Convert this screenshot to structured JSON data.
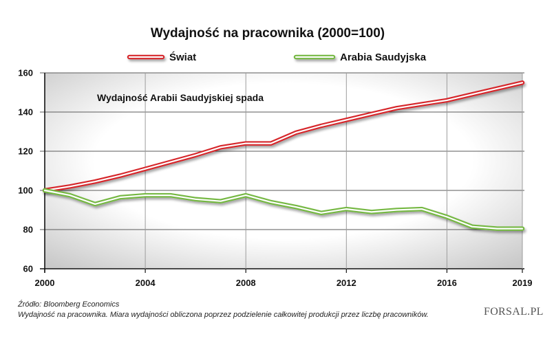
{
  "chart_data": {
    "type": "line",
    "title": "Wydajność na pracownika (2000=100)",
    "annotation": "Wydajność Arabii Saudyjskiej spada",
    "x": [
      2000,
      2001,
      2002,
      2003,
      2004,
      2005,
      2006,
      2007,
      2008,
      2009,
      2010,
      2011,
      2012,
      2013,
      2014,
      2015,
      2016,
      2017,
      2018,
      2019
    ],
    "xlim": [
      2000,
      2019
    ],
    "ylim": [
      60,
      160
    ],
    "x_ticks": [
      2000,
      2004,
      2008,
      2012,
      2016,
      2019
    ],
    "y_ticks": [
      160,
      140,
      120,
      100,
      80,
      60
    ],
    "grid": true,
    "legend": "top-center",
    "series": [
      {
        "name": "Świat",
        "color": "#d6262c",
        "values": [
          100,
          102,
          104.5,
          107.5,
          111,
          114.5,
          118,
          122,
          124,
          124,
          129.5,
          133,
          136,
          139,
          142,
          144,
          146,
          149,
          152,
          155
        ]
      },
      {
        "name": "Arabia Saudyjska",
        "color": "#74b843",
        "values": [
          100,
          97.5,
          93,
          96.5,
          97.5,
          97.5,
          95.5,
          94.5,
          97.5,
          94,
          91.5,
          88.5,
          90.5,
          89,
          90,
          90.5,
          86.5,
          81.5,
          80.5,
          80.5
        ]
      }
    ]
  },
  "footer": {
    "source": "Źródło: Bloomberg Economics",
    "note": "Wydajność na pracownika. Miara wydajności obliczona poprzez podzielenie całkowitej produkcji przez liczbę pracowników."
  },
  "logo": {
    "text": "FORSAL.PL"
  }
}
